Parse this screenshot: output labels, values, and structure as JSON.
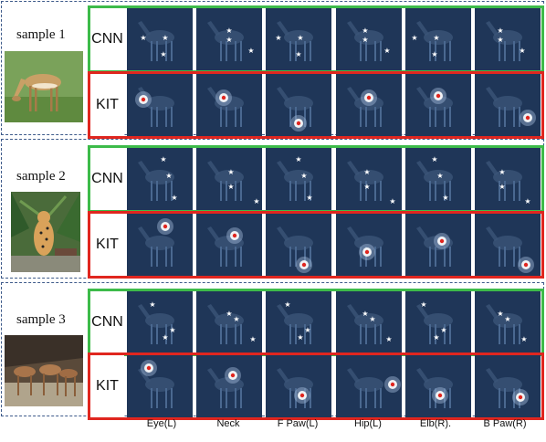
{
  "samples": [
    {
      "label": "sample 1"
    },
    {
      "label": "sample 2"
    },
    {
      "label": "sample 3"
    }
  ],
  "row_labels": {
    "cnn": "CNN",
    "kit": "KIT"
  },
  "columns": [
    "Eye(L)",
    "Neck",
    "F Paw(L)",
    "Hip(L)",
    "Elb(R).",
    "B Paw(R)"
  ],
  "colors": {
    "section_border": "#3d5a8a",
    "cnn_border": "#3dbb4a",
    "kit_border": "#e0261f",
    "panel_bg": "#1f3658"
  }
}
